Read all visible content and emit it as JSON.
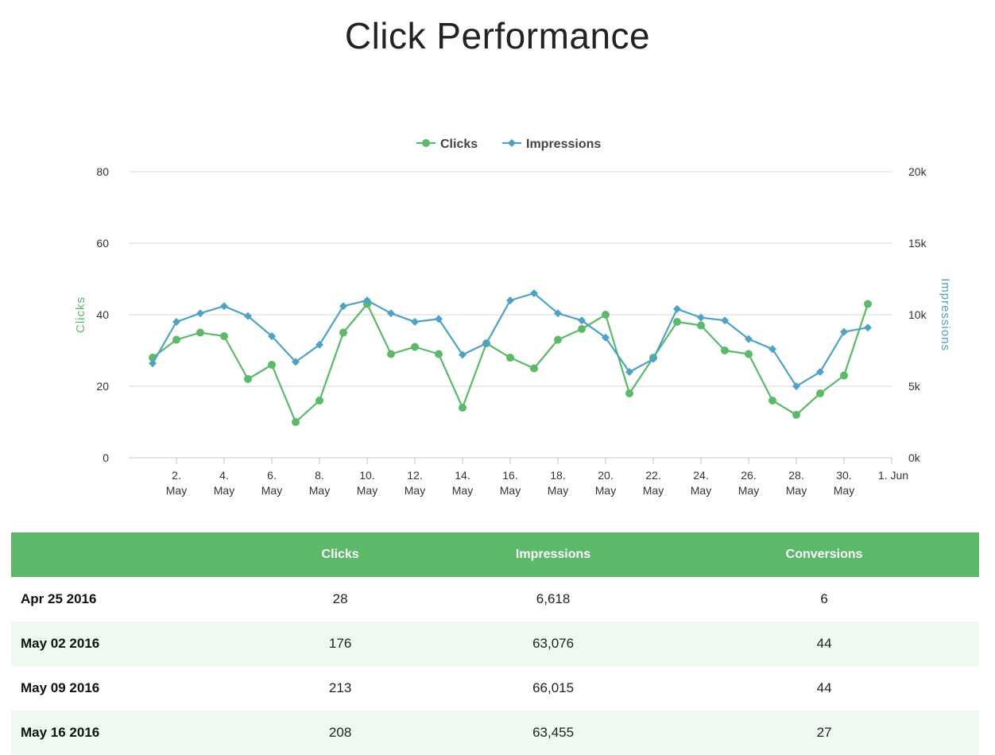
{
  "title": "Click Performance",
  "colors": {
    "clicks": "#5cb96a",
    "impressions": "#4ea3c4",
    "header": "#5cb96a",
    "alt_row": "#eefaf0",
    "grid": "#d8d8d8"
  },
  "chart_data": {
    "type": "line",
    "title": "Click Performance",
    "legend": [
      "Clicks",
      "Impressions"
    ],
    "legend_position": "top-center",
    "x": [
      "2016-05-01",
      "2016-05-02",
      "2016-05-03",
      "2016-05-04",
      "2016-05-05",
      "2016-05-06",
      "2016-05-07",
      "2016-05-08",
      "2016-05-09",
      "2016-05-10",
      "2016-05-11",
      "2016-05-12",
      "2016-05-13",
      "2016-05-14",
      "2016-05-15",
      "2016-05-16",
      "2016-05-17",
      "2016-05-18",
      "2016-05-19",
      "2016-05-20",
      "2016-05-21",
      "2016-05-22",
      "2016-05-23",
      "2016-05-24",
      "2016-05-25",
      "2016-05-26",
      "2016-05-27",
      "2016-05-28",
      "2016-05-29",
      "2016-05-30",
      "2016-05-31"
    ],
    "x_ticks": [
      {
        "date": "2016-05-02",
        "label": [
          "2.",
          "May"
        ]
      },
      {
        "date": "2016-05-04",
        "label": [
          "4.",
          "May"
        ]
      },
      {
        "date": "2016-05-06",
        "label": [
          "6.",
          "May"
        ]
      },
      {
        "date": "2016-05-08",
        "label": [
          "8.",
          "May"
        ]
      },
      {
        "date": "2016-05-10",
        "label": [
          "10.",
          "May"
        ]
      },
      {
        "date": "2016-05-12",
        "label": [
          "12.",
          "May"
        ]
      },
      {
        "date": "2016-05-14",
        "label": [
          "14.",
          "May"
        ]
      },
      {
        "date": "2016-05-16",
        "label": [
          "16.",
          "May"
        ]
      },
      {
        "date": "2016-05-18",
        "label": [
          "18.",
          "May"
        ]
      },
      {
        "date": "2016-05-20",
        "label": [
          "20.",
          "May"
        ]
      },
      {
        "date": "2016-05-22",
        "label": [
          "22.",
          "May"
        ]
      },
      {
        "date": "2016-05-24",
        "label": [
          "24.",
          "May"
        ]
      },
      {
        "date": "2016-05-26",
        "label": [
          "26.",
          "May"
        ]
      },
      {
        "date": "2016-05-28",
        "label": [
          "28.",
          "May"
        ]
      },
      {
        "date": "2016-05-30",
        "label": [
          "30.",
          "May"
        ]
      },
      {
        "date": "2016-06-01",
        "label": [
          "1. Jun"
        ]
      }
    ],
    "xlim": [
      "2016-04-30",
      "2016-06-01"
    ],
    "y_left": {
      "label": "Clicks",
      "ticks": [
        "0",
        "20",
        "40",
        "60",
        "80"
      ],
      "lim": [
        0,
        80
      ]
    },
    "y_right": {
      "label": "Impressions",
      "ticks": [
        "0k",
        "5k",
        "10k",
        "15k",
        "20k"
      ],
      "lim": [
        0,
        20000
      ]
    },
    "grid": true,
    "series": [
      {
        "name": "Clicks",
        "axis": "left",
        "marker": "circle",
        "values": [
          28,
          33,
          35,
          34,
          22,
          26,
          10,
          16,
          35,
          43,
          29,
          31,
          29,
          14,
          32,
          28,
          25,
          33,
          36,
          40,
          18,
          28,
          38,
          37,
          30,
          29,
          16,
          12,
          18,
          23,
          43
        ]
      },
      {
        "name": "Impressions",
        "axis": "right",
        "marker": "diamond",
        "values": [
          6600,
          9500,
          10100,
          10600,
          9900,
          8500,
          6700,
          7900,
          10600,
          11000,
          10100,
          9500,
          9700,
          7200,
          8000,
          11000,
          11500,
          10100,
          9600,
          8400,
          6000,
          6900,
          10400,
          9800,
          9600,
          8300,
          7600,
          5000,
          6000,
          8800,
          9100
        ]
      }
    ]
  },
  "table": {
    "headers": [
      "",
      "Clicks",
      "Impressions",
      "Conversions"
    ],
    "rows": [
      {
        "date": "Apr 25 2016",
        "clicks": "28",
        "impressions": "6,618",
        "conversions": "6"
      },
      {
        "date": "May 02 2016",
        "clicks": "176",
        "impressions": "63,076",
        "conversions": "44"
      },
      {
        "date": "May 09 2016",
        "clicks": "213",
        "impressions": "66,015",
        "conversions": "44"
      },
      {
        "date": "May 16 2016",
        "clicks": "208",
        "impressions": "63,455",
        "conversions": "27"
      }
    ]
  }
}
